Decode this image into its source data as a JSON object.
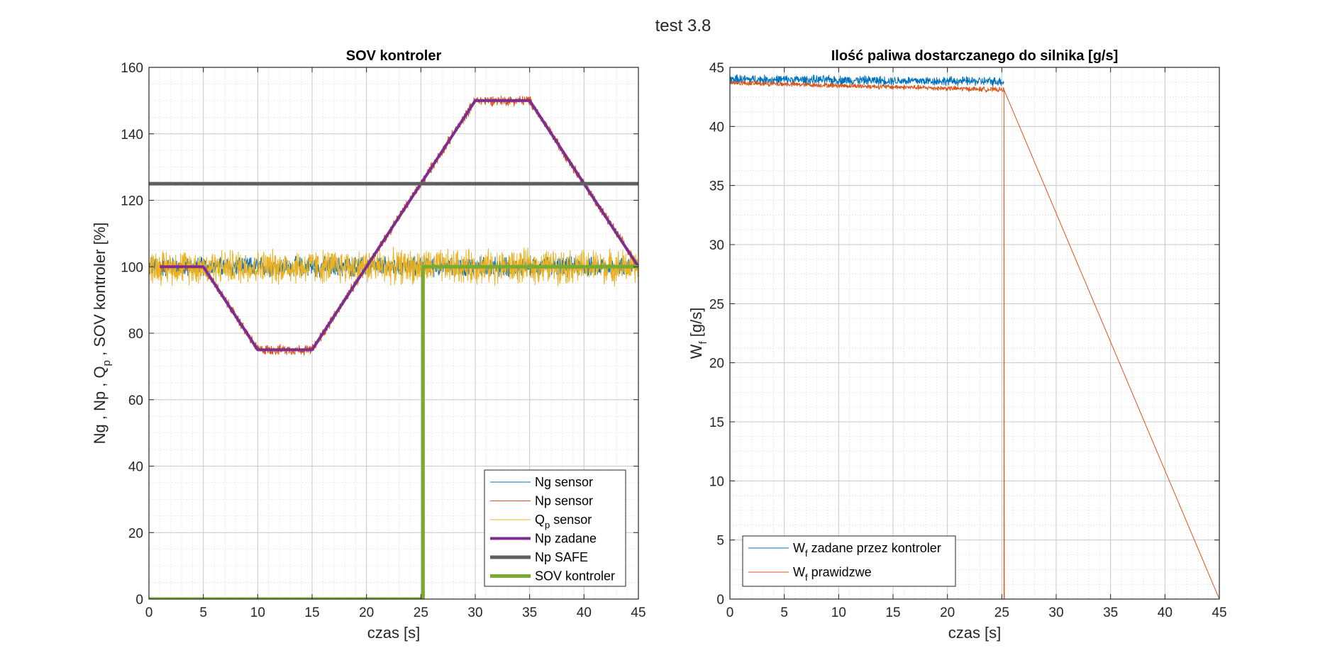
{
  "figure_title": "test 3.8",
  "chart_data": [
    {
      "type": "line",
      "title": "SOV kontroler",
      "xlabel": "czas [s]",
      "ylabel": {
        "p1": "Ng , Np , Q",
        "p1_sub": "p",
        "p2": " , SOV kontroler [%]"
      },
      "xlim": [
        0,
        45
      ],
      "ylim": [
        0,
        160
      ],
      "xticks": [
        0,
        5,
        10,
        15,
        20,
        25,
        30,
        35,
        40,
        45
      ],
      "yticks": [
        0,
        20,
        40,
        60,
        80,
        100,
        120,
        140,
        160
      ],
      "grid": true,
      "minor_grid": true,
      "legend_position": "bottom-right",
      "series": [
        {
          "name": "Ng sensor",
          "color": "#0072BD",
          "width": 1,
          "noise": true,
          "x": [
            0,
            45
          ],
          "y": [
            100,
            100
          ],
          "amplitude": 3.5
        },
        {
          "name": "Np sensor",
          "color": "#D95319",
          "width": 1,
          "noise": true,
          "x": [
            1,
            5,
            10,
            15,
            30,
            35,
            45
          ],
          "y": [
            100,
            100,
            75,
            75,
            150,
            150,
            100
          ],
          "amplitude": 1.8
        },
        {
          "name": "Q",
          "name_sub": "p",
          "name_rest": " sensor",
          "color": "#EDB120",
          "width": 1,
          "noise": true,
          "x": [
            0,
            45
          ],
          "y": [
            100,
            100
          ],
          "amplitude": 6
        },
        {
          "name": "Np zadane",
          "color": "#7E2F8E",
          "width": 4,
          "x": [
            1,
            5,
            10,
            15,
            30,
            35,
            45
          ],
          "y": [
            100,
            100,
            75,
            75,
            150,
            150,
            100
          ]
        },
        {
          "name": "Np SAFE",
          "color": "#5f5f5f",
          "width": 5,
          "x": [
            0,
            45
          ],
          "y": [
            125,
            125
          ]
        },
        {
          "name": "SOV kontroler",
          "color": "#77AC30",
          "width": 5,
          "x": [
            0,
            25.2,
            25.2,
            45
          ],
          "y": [
            0,
            0,
            100,
            100
          ]
        }
      ]
    },
    {
      "type": "line",
      "title": "Ilość paliwa dostarczanego do silnika [g/s]",
      "xlabel": "czas [s]",
      "ylabel": {
        "p1": "W",
        "p1_sub": "f",
        "p2": "  [g/s]"
      },
      "xlim": [
        0,
        45
      ],
      "ylim": [
        0,
        45
      ],
      "xticks": [
        0,
        5,
        10,
        15,
        20,
        25,
        30,
        35,
        40,
        45
      ],
      "yticks": [
        0,
        5,
        10,
        15,
        20,
        25,
        30,
        35,
        40,
        45
      ],
      "grid": true,
      "minor_grid": true,
      "legend_position": "bottom-left",
      "series": [
        {
          "name": "W",
          "name_sub": "f",
          "name_rest": " zadane przez kontroler",
          "color": "#0072BD",
          "width": 1,
          "noise": true,
          "x": [
            0,
            25.2
          ],
          "y": [
            44,
            43.8
          ],
          "amplitude": 0.45
        },
        {
          "name": "W",
          "name_sub": "f",
          "name_rest": " prawidzwe",
          "color": "#D95319",
          "width": 1,
          "noise": true,
          "x": [
            0,
            25.2,
            25.2,
            45
          ],
          "y": [
            43.7,
            43.1,
            0,
            0
          ],
          "amplitude": 0.25
        }
      ]
    }
  ]
}
